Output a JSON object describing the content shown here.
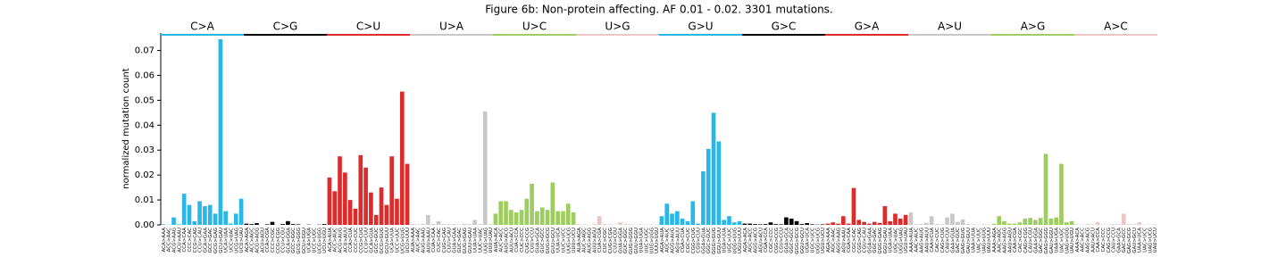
{
  "chart_data": {
    "type": "bar",
    "title": "Figure 6b: Non-protein affecting. AF 0.01 - 0.02. 3301 mutations.",
    "ylabel": "normalized mutation count",
    "groups": [
      {
        "name": "C>A",
        "color": "#29b6e8"
      },
      {
        "name": "C>G",
        "color": "#000000"
      },
      {
        "name": "C>U",
        "color": "#dd2a2a"
      },
      {
        "name": "U>A",
        "color": "#c8c8c8"
      },
      {
        "name": "U>C",
        "color": "#9dcc5f"
      },
      {
        "name": "U>G",
        "color": "#ecc5c5"
      },
      {
        "name": "G>U",
        "color": "#29b6e8"
      },
      {
        "name": "G>C",
        "color": "#000000"
      },
      {
        "name": "G>A",
        "color": "#dd2a2a"
      },
      {
        "name": "A>U",
        "color": "#c8c8c8"
      },
      {
        "name": "A>G",
        "color": "#9dcc5f"
      },
      {
        "name": "A>C",
        "color": "#ecc5c5"
      }
    ],
    "categories": [
      "ACA>AAA",
      "ACC>AAC",
      "ACG>AAG",
      "ACU>AAU",
      "CCA>CAA",
      "CCC>CAC",
      "CCG>CAG",
      "CCU>CAU",
      "GCA>GAA",
      "GCC>GAC",
      "GCG>GAG",
      "GCU>GAU",
      "UCA>UAA",
      "UCC>UAC",
      "UCG>UAG",
      "UCU>UAU",
      "ACA>AGA",
      "ACC>AGC",
      "ACG>AGG",
      "ACU>AGU",
      "CCA>CGA",
      "CCC>CGC",
      "CCG>CGG",
      "CCU>CGU",
      "GCA>GGA",
      "GCC>GGC",
      "GCG>GGG",
      "GCU>GGU",
      "UCA>UGA",
      "UCC>UGC",
      "UCG>UGG",
      "UCU>UGU",
      "ACA>AUA",
      "ACC>AUC",
      "ACG>AUG",
      "ACU>AUU",
      "CCA>CUA",
      "CCC>CUC",
      "CCG>CUG",
      "CCU>CUU",
      "GCA>GUA",
      "GCC>GUC",
      "GCG>GUG",
      "GCU>GUU",
      "UCA>UUA",
      "UCC>UUC",
      "UCG>UUG",
      "UCU>UUU",
      "AUA>AAA",
      "AUC>AAC",
      "AUG>AAG",
      "AUU>AAU",
      "CUA>CAA",
      "CUC>CAC",
      "CUG>CAG",
      "CUU>CAU",
      "GUA>GAA",
      "GUC>GAC",
      "GUG>GAG",
      "GUU>GAU",
      "UUA>UAA",
      "UUC>UAC",
      "UUG>UAG",
      "UUU>UAU",
      "AUA>ACA",
      "AUC>ACC",
      "AUG>ACG",
      "AUU>ACU",
      "CUA>CCA",
      "CUC>CCC",
      "CUG>CCG",
      "CUU>CCU",
      "GUA>GCA",
      "GUC>GCC",
      "GUG>GCG",
      "GUU>GCU",
      "UUA>UCA",
      "UUC>UCC",
      "UUG>UCG",
      "UUU>UCU",
      "AUA>AGA",
      "AUC>AGC",
      "AUG>AGG",
      "AUU>AGU",
      "CUA>CGA",
      "CUC>CGC",
      "CUG>CGG",
      "CUU>CGU",
      "GUA>GGA",
      "GUC>GGC",
      "GUG>GGG",
      "GUU>GGU",
      "UUA>UGA",
      "UUC>UGC",
      "UUG>UGG",
      "UUU>UGU",
      "AGA>AUA",
      "AGC>AUC",
      "AGG>AUG",
      "AGU>AUU",
      "CGA>CUA",
      "CGC>CUC",
      "CGG>CUG",
      "CGU>CUU",
      "GGA>GUA",
      "GGC>GUC",
      "GGG>GUG",
      "GGU>GUU",
      "UGA>UUA",
      "UGC>UUC",
      "UGG>UUG",
      "UGU>UUU",
      "AGA>ACA",
      "AGC>ACC",
      "AGG>ACG",
      "AGU>ACU",
      "CGA>CCA",
      "CGC>CCC",
      "CGG>CCG",
      "CGU>CCU",
      "GGA>GCA",
      "GGC>GCC",
      "GGG>GCG",
      "GGU>GCU",
      "UGA>UCA",
      "UGC>UCC",
      "UGG>UCG",
      "UGU>UCU",
      "AGA>AAA",
      "AGC>AAC",
      "AGG>AAG",
      "AGU>AAU",
      "CGA>CAA",
      "CGC>CAC",
      "CGG>CAG",
      "CGU>CAU",
      "GGA>GAA",
      "GGC>GAC",
      "GGG>GAG",
      "GGU>GAU",
      "UGA>UAA",
      "UGC>UAC",
      "UGG>UAG",
      "UGU>UAU",
      "AAA>AUA",
      "AAC>AUC",
      "AAG>AUG",
      "AAU>AUU",
      "CAA>CUA",
      "CAC>CUC",
      "CAG>CUG",
      "CAU>CUU",
      "GAA>GUA",
      "GAC>GUC",
      "GAG>GUG",
      "GAU>GUU",
      "UAA>UUA",
      "UAC>UUC",
      "UAG>UUG",
      "UAU>UUU",
      "AAA>AGA",
      "AAC>AGC",
      "AAG>AGG",
      "AAU>AGU",
      "CAA>CGA",
      "CAC>CGC",
      "CAG>CGG",
      "CAU>CGU",
      "GAA>GGA",
      "GAC>GGC",
      "GAG>GGG",
      "GAU>GGU",
      "UAA>UGA",
      "UAC>UGC",
      "UAG>UGG",
      "UAU>UGU",
      "AAA>ACA",
      "AAC>ACC",
      "AAG>ACG",
      "AAU>ACU",
      "CAA>CCA",
      "CAC>CCC",
      "CAG>CCG",
      "CAU>CCU",
      "GAA>GCA",
      "GAC>GCC",
      "GAG>GCG",
      "GAU>GCU",
      "UAA>UCA",
      "UAC>UCC",
      "UAG>UCG",
      "UAU>UCU"
    ],
    "values": [
      0.0002,
      0.0001,
      0.003,
      0.0002,
      0.0125,
      0.008,
      0.0015,
      0.0095,
      0.0075,
      0.008,
      0.0045,
      0.0745,
      0.0055,
      0.0005,
      0.0045,
      0.0105,
      0.0005,
      0.0003,
      0.0007,
      0,
      0.0002,
      0.0012,
      0,
      0.0003,
      0.0015,
      0.0003,
      0.0002,
      0,
      0.0001,
      0,
      0.0001,
      0.0003,
      0.019,
      0.0135,
      0.0275,
      0.021,
      0.01,
      0.0065,
      0.028,
      0.023,
      0.013,
      0.004,
      0.015,
      0.008,
      0.0275,
      0.0105,
      0.0535,
      0.0245,
      0.0003,
      0.0002,
      0.0004,
      0.004,
      0.0003,
      0.0015,
      0.0003,
      0.0002,
      0.0003,
      0.0001,
      0.0004,
      0.0003,
      0.002,
      0.0003,
      0.0455,
      0.0002,
      0.0045,
      0.0095,
      0.0095,
      0.006,
      0.005,
      0.006,
      0.0105,
      0.0165,
      0.0055,
      0.007,
      0.006,
      0.017,
      0.0055,
      0.0055,
      0.0085,
      0.005,
      0.0003,
      0.0002,
      0.0001,
      0.0003,
      0.0035,
      0.0003,
      0.0002,
      0.0001,
      0.001,
      0.0003,
      0.0002,
      0.0001,
      0.0002,
      0.0001,
      0.0002,
      0.0001,
      0.0035,
      0.0085,
      0.0045,
      0.0055,
      0.0025,
      0.0015,
      0.0095,
      0.0005,
      0.0215,
      0.0305,
      0.045,
      0.0335,
      0.002,
      0.0035,
      0.001,
      0.0015,
      0.0005,
      0.0005,
      0.0003,
      0.0002,
      0.0003,
      0.001,
      0.0003,
      0.0002,
      0.003,
      0.0025,
      0.0015,
      0.0003,
      0.0007,
      0.0002,
      0.0001,
      0.0002,
      0.0005,
      0.001,
      0.0005,
      0.0035,
      0.0005,
      0.0148,
      0.002,
      0.0012,
      0.0005,
      0.0012,
      0.0008,
      0.0075,
      0.0015,
      0.0045,
      0.0025,
      0.004,
      0.005,
      0.0003,
      0.0003,
      0.0008,
      0.0035,
      0.0003,
      0.0002,
      0.003,
      0.0045,
      0.0012,
      0.0022,
      0.0003,
      0.0002,
      0.0001,
      0.0002,
      0.0001,
      0.0004,
      0.0035,
      0.0015,
      0.0005,
      0.0005,
      0.001,
      0.0025,
      0.0028,
      0.002,
      0.0028,
      0.0285,
      0.0025,
      0.003,
      0.0245,
      0.001,
      0.0015,
      0.0002,
      0.0001,
      0.0003,
      0.0002,
      0.001,
      0.0002,
      0.0001,
      0.0003,
      0.0002,
      0.0045,
      0.0003,
      0.0002,
      0.001,
      0.0001,
      0.0001,
      0.0002
    ],
    "ylim": [
      0,
      0.077
    ],
    "yticks": [
      {
        "value": 0,
        "label": "0.00"
      },
      {
        "value": 0.01,
        "label": "0.01"
      },
      {
        "value": 0.02,
        "label": "0.02"
      },
      {
        "value": 0.03,
        "label": "0.03"
      },
      {
        "value": 0.04,
        "label": "0.04"
      },
      {
        "value": 0.05,
        "label": "0.05"
      },
      {
        "value": 0.06,
        "label": "0.06"
      },
      {
        "value": 0.07,
        "label": "0.07"
      }
    ],
    "grid": false
  }
}
